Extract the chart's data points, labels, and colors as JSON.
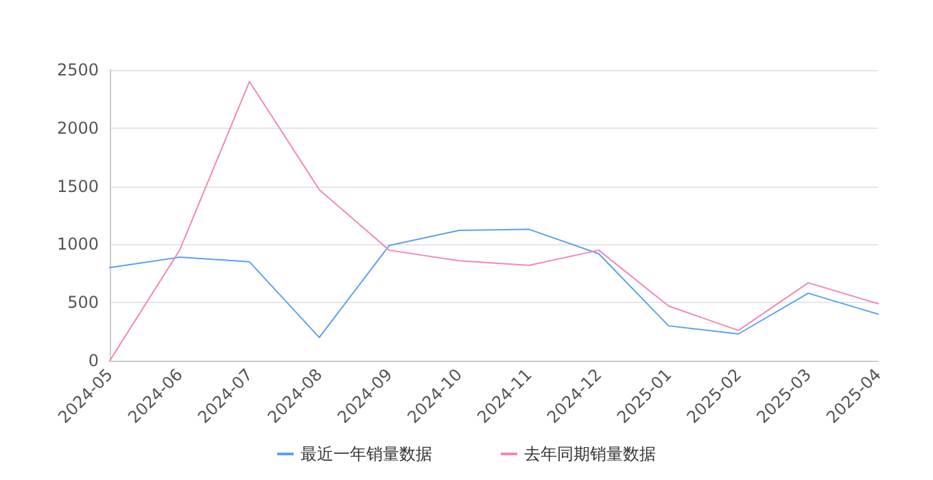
{
  "chart_data": {
    "type": "line",
    "categories": [
      "2024-05",
      "2024-06",
      "2024-07",
      "2024-08",
      "2024-09",
      "2024-10",
      "2024-11",
      "2024-12",
      "2025-01",
      "2025-02",
      "2025-03",
      "2025-04"
    ],
    "series": [
      {
        "name": "最近一年销量数据",
        "color": "#5aa1f0",
        "values": [
          800,
          890,
          850,
          200,
          990,
          1120,
          1130,
          920,
          300,
          230,
          580,
          400
        ]
      },
      {
        "name": "去年同期销量数据",
        "color": "#f386bd",
        "values": [
          0,
          950,
          2400,
          1470,
          950,
          860,
          820,
          950,
          470,
          260,
          670,
          490
        ]
      }
    ],
    "ylim": [
      0,
      2500
    ],
    "yticks": [
      0,
      500,
      1000,
      1500,
      2000,
      2500
    ],
    "grid": "y",
    "legend": "bottom",
    "marker": "none",
    "line_style": "solid"
  }
}
